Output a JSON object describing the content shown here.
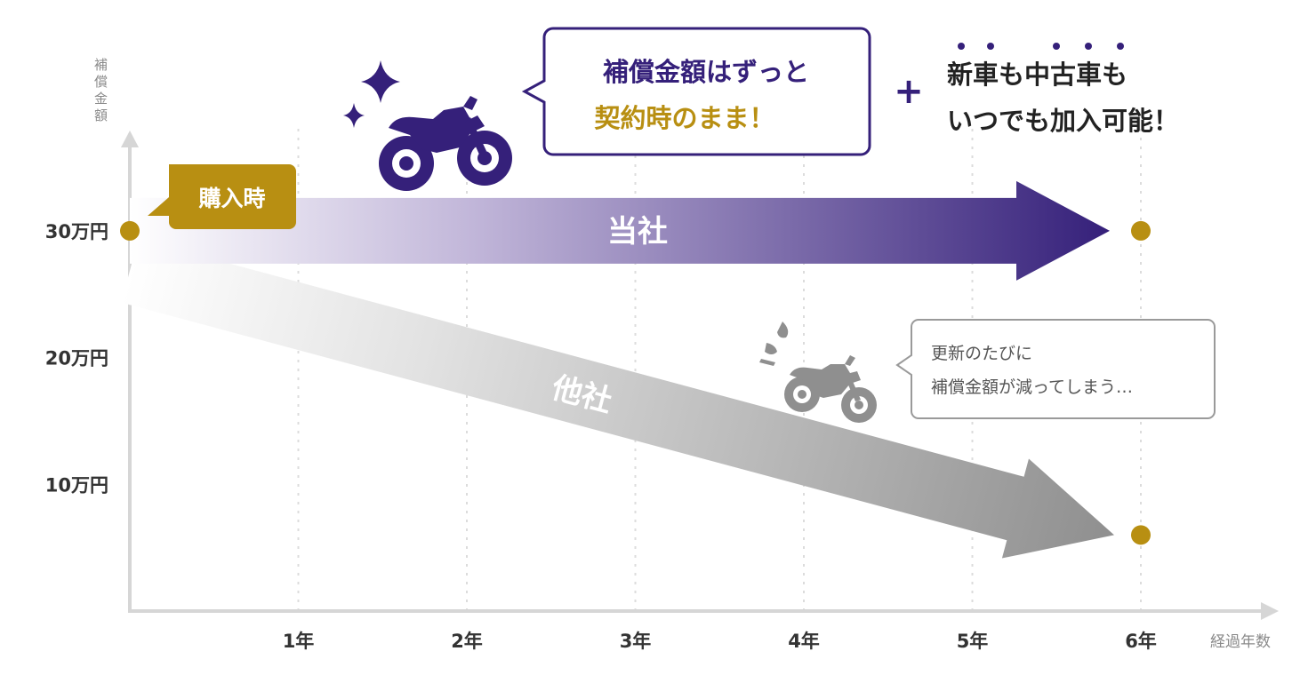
{
  "chart_data": {
    "type": "line",
    "ylabel": "補償金額",
    "xlabel": "経過年数",
    "y_ticks": [
      "10万円",
      "20万円",
      "30万円"
    ],
    "y_tick_values": [
      10,
      20,
      30
    ],
    "x_ticks": [
      "1年",
      "2年",
      "3年",
      "4年",
      "5年",
      "6年"
    ],
    "x_tick_values": [
      1,
      2,
      3,
      4,
      5,
      6
    ],
    "xlim": [
      0,
      6.3
    ],
    "ylim": [
      0,
      38
    ],
    "grid": "vertical dotted",
    "series": [
      {
        "name": "当社",
        "color": "#35207a",
        "points": [
          [
            0,
            30
          ],
          [
            6,
            30
          ]
        ]
      },
      {
        "name": "他社",
        "color": "#8f8f8f",
        "points": [
          [
            0,
            30
          ],
          [
            6,
            6
          ]
        ]
      }
    ],
    "annotations": {
      "purchase": "購入時",
      "ours_bubble_line1": "補償金額はずっと",
      "ours_bubble_line2": "契約時のまま！",
      "plus": "+",
      "ours_extra_line1": "新車も中古車も",
      "ours_extra_line2": "いつでも加入可能！",
      "others_bubble_line1": "更新のたびに",
      "others_bubble_line2": "補償金額が減ってしまう…"
    },
    "colors": {
      "accent_purple": "#35207a",
      "accent_gold": "#b88f12",
      "gray": "#8f8f8f",
      "axis": "#d6d6d6"
    },
    "icons": [
      "motorcycle-icon",
      "sparkle-icon",
      "sweat-drop-icon"
    ]
  }
}
